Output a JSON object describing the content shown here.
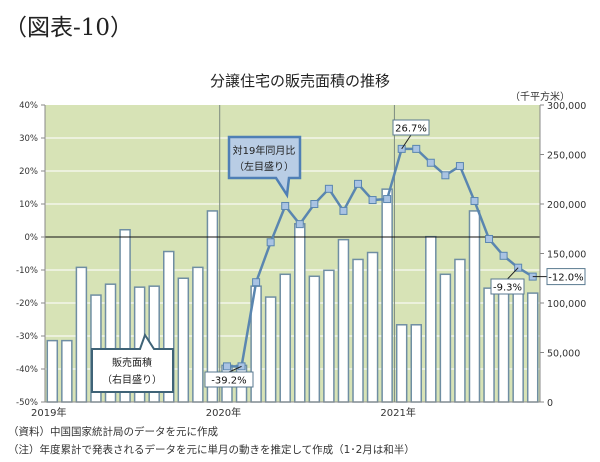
{
  "heading": "（図表-10）",
  "notes": [
    "（資料）中国国家統計局のデータを元に作成",
    "（注）年度累計で発表されるデータを元に単月の動きを推定して作成（1･2月は和半）"
  ],
  "colors": {
    "plot_bg": "#d7e3b6",
    "bar_fill": "#ffffff",
    "bar_border": "#6f8ea3",
    "line": "#5a86b0",
    "marker": "#a9c3e3",
    "callout_fill": "#b9cde5",
    "callout_border": "#4f7fb5"
  },
  "chart_data": {
    "type": "bar+line",
    "title": "分譲住宅の販売面積の推移",
    "right_unit": "（千平方米）",
    "grid": true,
    "year_labels": [
      "2019年",
      "2020年",
      "2021年"
    ],
    "left_axis": {
      "range": [
        -50,
        40
      ],
      "ticks": [
        "40%",
        "30%",
        "20%",
        "10%",
        "0%",
        "-10%",
        "-20%",
        "-30%",
        "-40%",
        "-50%"
      ]
    },
    "right_axis": {
      "range": [
        0,
        300000
      ],
      "ticks": [
        "300,000",
        "250,000",
        "200,000",
        "150,000",
        "100,000",
        "50,000",
        "0"
      ]
    },
    "categories": [
      "2019-01",
      "2019-02",
      "2019-03",
      "2019-04",
      "2019-05",
      "2019-06",
      "2019-07",
      "2019-08",
      "2019-09",
      "2019-10",
      "2019-11",
      "2019-12",
      "2020-01",
      "2020-02",
      "2020-03",
      "2020-04",
      "2020-05",
      "2020-06",
      "2020-07",
      "2020-08",
      "2020-09",
      "2020-10",
      "2020-11",
      "2020-12",
      "2021-01",
      "2021-02",
      "2021-03",
      "2021-04",
      "2021-05",
      "2021-06",
      "2021-07",
      "2021-08",
      "2021-09",
      "2021-10"
    ],
    "series": [
      {
        "name": "販売面積（右目盛り）",
        "type": "bar",
        "axis": "right",
        "values": [
          62000,
          62000,
          136000,
          108000,
          119000,
          174000,
          116000,
          117000,
          152000,
          125000,
          136000,
          193000,
          37000,
          37000,
          117000,
          106000,
          129000,
          180000,
          127000,
          133000,
          164000,
          144000,
          151000,
          215000,
          78000,
          78000,
          167000,
          129000,
          144000,
          193000,
          115000,
          112000,
          113000,
          110000
        ]
      },
      {
        "name": "対19年同月比（左目盛り）",
        "type": "line",
        "axis": "left",
        "values": [
          null,
          null,
          null,
          null,
          null,
          null,
          null,
          null,
          null,
          null,
          null,
          null,
          -39.2,
          -39.2,
          -13.7,
          -1.6,
          9.4,
          3.9,
          10.0,
          14.6,
          7.9,
          16.1,
          11.2,
          11.5,
          26.7,
          26.7,
          22.5,
          18.7,
          21.5,
          10.9,
          -0.6,
          -5.7,
          -9.3,
          -12.0
        ]
      }
    ],
    "data_labels": [
      "-39.2%",
      "26.7%",
      "-9.3%",
      "-12.0%"
    ],
    "legend_callouts": {
      "line": [
        "対19年同月比",
        "（左目盛り）"
      ],
      "bar": [
        "販売面積",
        "（右目盛り）"
      ]
    }
  }
}
